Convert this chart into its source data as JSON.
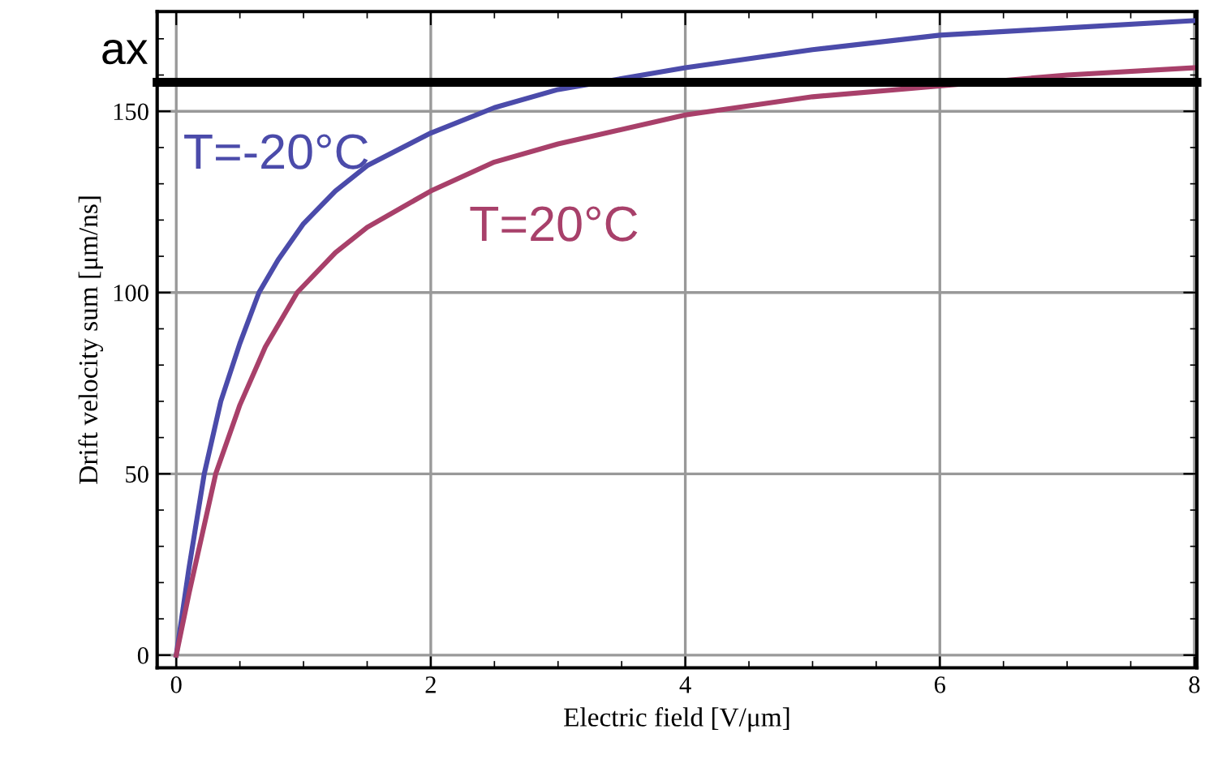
{
  "chart_data": {
    "type": "line",
    "xlabel": "Electric field [V/μm]",
    "ylabel": "Drift velocity sum [μm/ns]",
    "xlim": [
      -0.15,
      8.02
    ],
    "ylim": [
      -3.5,
      177.5
    ],
    "xticks": [
      0,
      2,
      4,
      6,
      8
    ],
    "yticks": [
      0,
      50,
      100,
      150
    ],
    "grid": true,
    "line_style": "solid",
    "series": [
      {
        "name": "T=-20°C",
        "color": "#4b4baa",
        "x": [
          0,
          0.1,
          0.22,
          0.35,
          0.5,
          0.65,
          0.8,
          1.0,
          1.25,
          1.5,
          2.0,
          2.5,
          3.0,
          4.0,
          5.0,
          6.0,
          7.0,
          8.0
        ],
        "values": [
          0,
          24,
          50,
          70,
          86,
          100,
          109,
          119,
          128,
          135,
          144,
          151,
          156,
          162,
          167,
          171,
          173,
          175
        ]
      },
      {
        "name": "T=20°C",
        "color": "#a8406a",
        "x": [
          0,
          0.1,
          0.31,
          0.5,
          0.7,
          0.95,
          1.25,
          1.5,
          2.0,
          2.5,
          3.0,
          4.0,
          5.0,
          6.0,
          7.0,
          8.0
        ],
        "values": [
          0,
          17,
          50,
          69,
          85,
          100,
          111,
          118,
          128,
          136,
          141,
          149,
          154,
          157,
          160,
          162
        ]
      }
    ],
    "ref_lines": [
      {
        "axis": "y",
        "value": 158,
        "label": "ax",
        "color": "#000000"
      }
    ]
  }
}
